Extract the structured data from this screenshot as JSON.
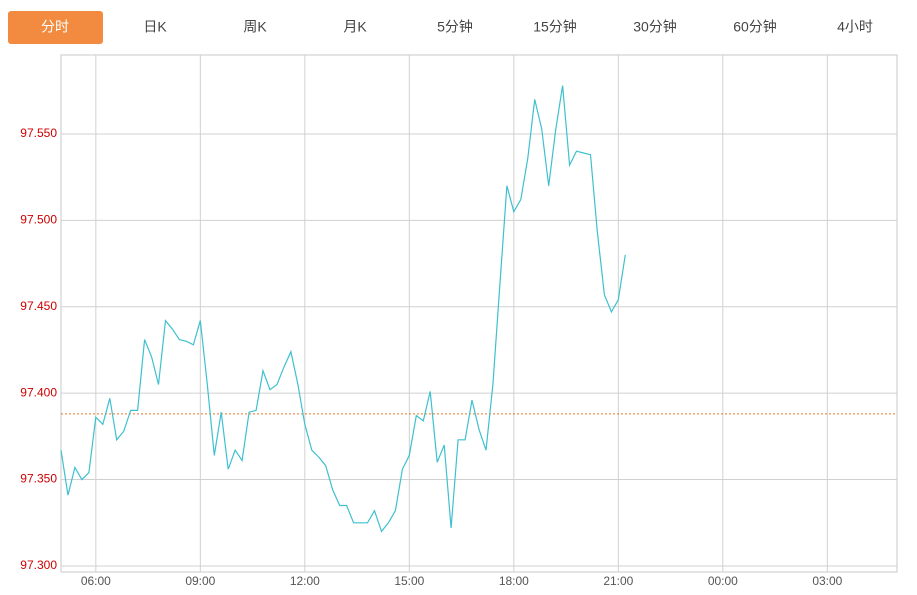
{
  "tabs": {
    "items": [
      "分时",
      "日K",
      "周K",
      "月K",
      "5分钟",
      "15分钟",
      "30分钟",
      "60分钟",
      "4小时"
    ],
    "active": 0,
    "active_color": "#f28b3f"
  },
  "chart_data": {
    "type": "line",
    "x": [
      5.0,
      5.2,
      5.4,
      5.6,
      5.8,
      6.0,
      6.2,
      6.4,
      6.6,
      6.8,
      7.0,
      7.2,
      7.4,
      7.6,
      7.8,
      8.0,
      8.2,
      8.4,
      8.6,
      8.8,
      9.0,
      9.2,
      9.4,
      9.6,
      9.8,
      10.0,
      10.2,
      10.4,
      10.6,
      10.8,
      11.0,
      11.2,
      11.4,
      11.6,
      11.8,
      12.0,
      12.2,
      12.4,
      12.6,
      12.8,
      13.0,
      13.2,
      13.4,
      13.6,
      13.8,
      14.0,
      14.2,
      14.4,
      14.6,
      14.8,
      15.0,
      15.2,
      15.4,
      15.6,
      15.8,
      16.0,
      16.2,
      16.4,
      16.6,
      16.8,
      17.0,
      17.2,
      17.4,
      17.6,
      17.8,
      18.0,
      18.2,
      18.4,
      18.6,
      18.8,
      19.0,
      19.2,
      19.4,
      19.6,
      19.8,
      20.0,
      20.2,
      20.4,
      20.6,
      20.8,
      21.0,
      21.2
    ],
    "series": [
      {
        "color": "#3ec0cf",
        "values": [
          97.367,
          97.341,
          97.357,
          97.35,
          97.354,
          97.386,
          97.382,
          97.397,
          97.373,
          97.378,
          97.39,
          97.39,
          97.431,
          97.421,
          97.405,
          97.442,
          97.437,
          97.431,
          97.43,
          97.428,
          97.442,
          97.405,
          97.364,
          97.389,
          97.356,
          97.367,
          97.361,
          97.389,
          97.39,
          97.413,
          97.402,
          97.405,
          97.415,
          97.424,
          97.405,
          97.382,
          97.367,
          97.363,
          97.358,
          97.344,
          97.335,
          97.335,
          97.325,
          97.325,
          97.325,
          97.332,
          97.32,
          97.325,
          97.332,
          97.356,
          97.364,
          97.387,
          97.384,
          97.401,
          97.36,
          97.37,
          97.322,
          97.373,
          97.373,
          97.396,
          97.379,
          97.367,
          97.405,
          97.463,
          97.52,
          97.505,
          97.512,
          97.536,
          97.57,
          97.553,
          97.52,
          97.552,
          97.578,
          97.532,
          97.54,
          97.539,
          97.538,
          97.493,
          97.457,
          97.447,
          97.454,
          97.48
        ]
      }
    ],
    "xlim": [
      5,
      29
    ],
    "xticks": [
      {
        "value": 6,
        "label": "06:00"
      },
      {
        "value": 9,
        "label": "09:00"
      },
      {
        "value": 12,
        "label": "12:00"
      },
      {
        "value": 15,
        "label": "15:00"
      },
      {
        "value": 18,
        "label": "18:00"
      },
      {
        "value": 21,
        "label": "21:00"
      },
      {
        "value": 24,
        "label": "00:00"
      },
      {
        "value": 27,
        "label": "03:00"
      }
    ],
    "ylim": [
      97.2965,
      97.5957
    ],
    "yticks": [
      {
        "value": 97.3,
        "label": "97.300"
      },
      {
        "value": 97.35,
        "label": "97.350"
      },
      {
        "value": 97.4,
        "label": "97.400"
      },
      {
        "value": 97.45,
        "label": "97.450"
      },
      {
        "value": 97.5,
        "label": "97.500"
      },
      {
        "value": 97.55,
        "label": "97.550"
      }
    ],
    "ytick_color": "#cc0000",
    "grid": true,
    "reference_line": {
      "value": 97.388,
      "color": "#e8742a"
    }
  }
}
